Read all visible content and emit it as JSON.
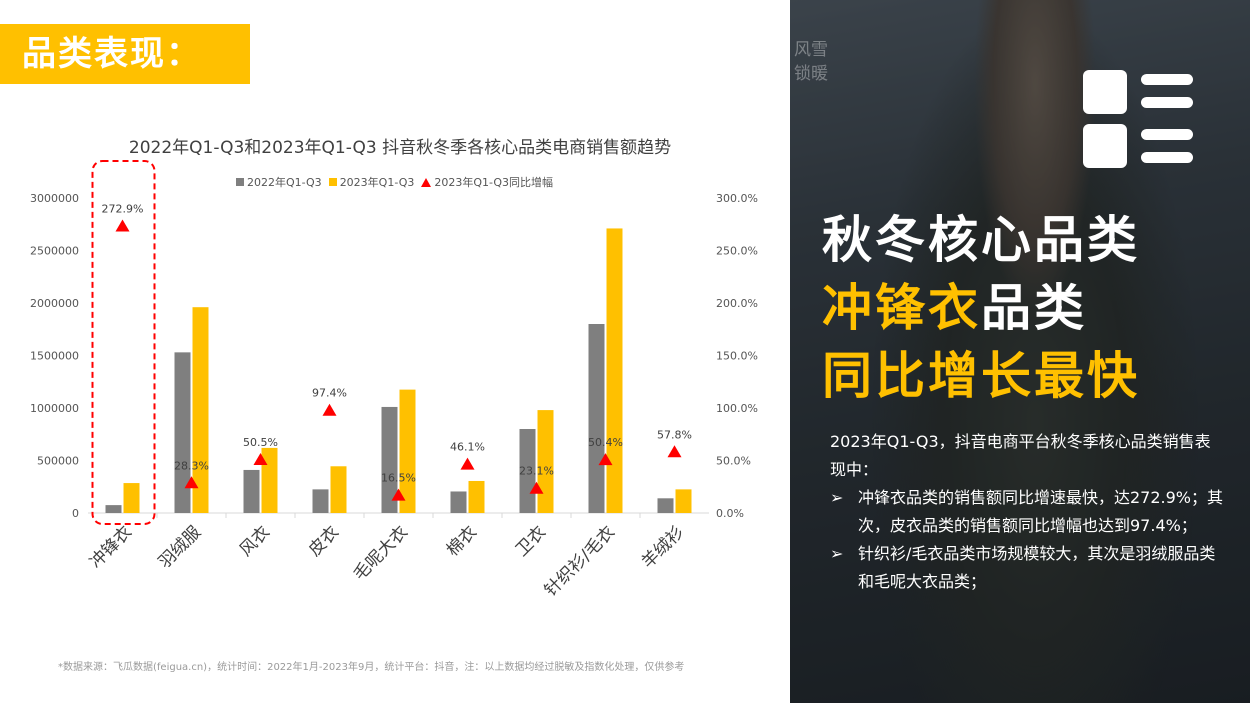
{
  "header": {
    "section_title": "品类表现："
  },
  "chart_data": {
    "type": "bar",
    "title": "2022年Q1-Q3和2023年Q1-Q3 抖音秋冬季各核心品类电商销售额趋势",
    "categories": [
      "冲锋衣",
      "羽绒服",
      "风衣",
      "皮衣",
      "毛呢大衣",
      "棉衣",
      "卫衣",
      "针织衫/毛衣",
      "羊绒衫"
    ],
    "series": [
      {
        "name": "2022年Q1-Q3",
        "type": "bar",
        "axis": "left",
        "color": "#7f7f7f",
        "values": [
          75000,
          1530000,
          410000,
          225000,
          1010000,
          205000,
          800000,
          1800000,
          140000
        ]
      },
      {
        "name": "2023年Q1-Q3",
        "type": "bar",
        "axis": "left",
        "color": "#ffc000",
        "values": [
          285000,
          1960000,
          620000,
          445000,
          1175000,
          305000,
          980000,
          2710000,
          225000
        ]
      },
      {
        "name": "2023年Q1-Q3同比增幅",
        "type": "scatter",
        "marker": "triangle",
        "axis": "right",
        "color": "#ff0000",
        "values": [
          272.9,
          28.3,
          50.5,
          97.4,
          16.5,
          46.1,
          23.1,
          50.4,
          57.8
        ],
        "labels": [
          "272.9%",
          "28.3%",
          "50.5%",
          "97.4%",
          "16.5%",
          "46.1%",
          "23.1%",
          "50.4%",
          "57.8%"
        ]
      }
    ],
    "y_left": {
      "min": 0,
      "max": 3000000,
      "step": 500000,
      "ticks": [
        "0",
        "500000",
        "1000000",
        "1500000",
        "2000000",
        "2500000",
        "3000000"
      ]
    },
    "y_right": {
      "min": 0,
      "max": 300,
      "step": 50,
      "ticks": [
        "0.0%",
        "50.0%",
        "100.0%",
        "150.0%",
        "200.0%",
        "250.0%",
        "300.0%"
      ]
    },
    "legend_position": "top",
    "grid": false,
    "highlight": {
      "category": "冲锋衣",
      "style": "red dashed rounded box"
    }
  },
  "footnote": "*数据来源：飞瓜数据(feigua.cn)，统计时间：2022年1月-2023年9月，统计平台：抖音，注：以上数据均经过脱敏及指数化处理，仅供参考",
  "side": {
    "bg_text": [
      "风雪",
      "锁暖"
    ],
    "headline": {
      "line1": "秋冬核心品类",
      "line2_accent": "冲锋衣",
      "line2_rest": "品类",
      "line3_accent": "同比增长最快"
    },
    "intro": "2023年Q1-Q3，抖音电商平台秋冬季核心品类销售表现中：",
    "bullet_marker": "➢",
    "bullets": [
      "冲锋衣品类的销售额同比增速最快，达272.9%；其次，皮衣品类的销售额同比增幅也达到97.4%；",
      "针织衫/毛衣品类市场规模较大，其次是羽绒服品类和毛呢大衣品类；"
    ],
    "colors": {
      "accent": "#ffc000",
      "text": "#ffffff"
    }
  }
}
